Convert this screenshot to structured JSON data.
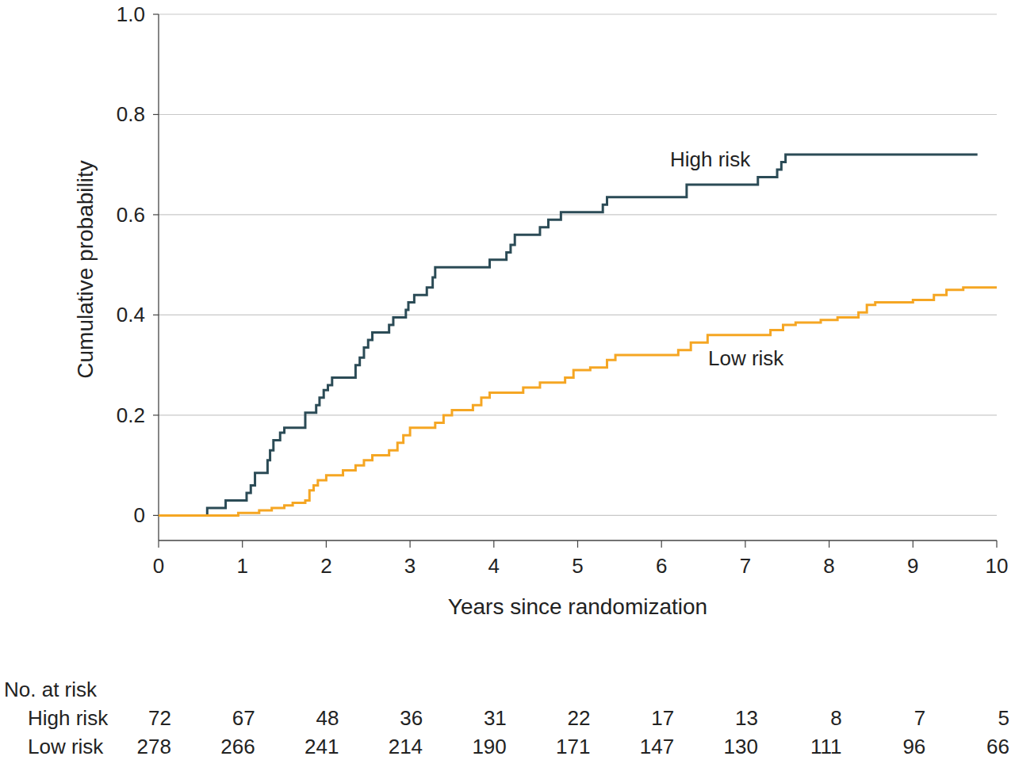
{
  "chart_data": {
    "type": "line",
    "x_label": "Years since randomization",
    "y_label": "Cumulative probability",
    "xlim": [
      0,
      10
    ],
    "xticks": [
      0,
      1,
      2,
      3,
      4,
      5,
      6,
      7,
      8,
      9,
      10
    ],
    "ylim": [
      -0.05,
      1.0
    ],
    "yticks": [
      0,
      0.2,
      0.4,
      0.6,
      0.8,
      {
        "value": 1,
        "label": "1.0"
      }
    ],
    "grid": true,
    "line_style": "step",
    "series": [
      {
        "name": "High risk",
        "color": "#2b4b56",
        "x": [
          0,
          0.58,
          0.8,
          1.05,
          1.1,
          1.15,
          1.3,
          1.33,
          1.37,
          1.45,
          1.5,
          1.75,
          1.88,
          1.92,
          1.97,
          2.02,
          2.07,
          2.35,
          2.4,
          2.45,
          2.5,
          2.55,
          2.75,
          2.8,
          2.95,
          2.98,
          3.05,
          3.2,
          3.27,
          3.3,
          3.95,
          4.15,
          4.2,
          4.25,
          4.55,
          4.65,
          4.8,
          5.3,
          5.35,
          6.3,
          7.15,
          7.38,
          7.43,
          7.48,
          9.77
        ],
        "values": [
          0,
          0.015,
          0.03,
          0.045,
          0.06,
          0.085,
          0.11,
          0.13,
          0.15,
          0.165,
          0.175,
          0.205,
          0.22,
          0.235,
          0.25,
          0.26,
          0.275,
          0.3,
          0.315,
          0.335,
          0.35,
          0.365,
          0.38,
          0.395,
          0.41,
          0.425,
          0.44,
          0.455,
          0.475,
          0.495,
          0.51,
          0.525,
          0.54,
          0.56,
          0.575,
          0.59,
          0.605,
          0.62,
          0.635,
          0.66,
          0.675,
          0.69,
          0.705,
          0.72,
          0.72
        ]
      },
      {
        "name": "Low risk",
        "color": "#f5a623",
        "x": [
          0,
          0.95,
          1.2,
          1.35,
          1.5,
          1.6,
          1.75,
          1.8,
          1.85,
          1.9,
          2.0,
          2.2,
          2.35,
          2.45,
          2.55,
          2.75,
          2.85,
          2.92,
          3.0,
          3.3,
          3.4,
          3.5,
          3.75,
          3.85,
          3.95,
          4.35,
          4.55,
          4.85,
          4.95,
          5.15,
          5.35,
          5.45,
          6.2,
          6.35,
          6.55,
          7.3,
          7.45,
          7.6,
          7.9,
          8.1,
          8.35,
          8.45,
          8.55,
          9.0,
          9.25,
          9.4,
          9.6,
          10.0
        ],
        "values": [
          0,
          0.005,
          0.01,
          0.015,
          0.02,
          0.025,
          0.03,
          0.05,
          0.06,
          0.07,
          0.08,
          0.09,
          0.1,
          0.11,
          0.12,
          0.13,
          0.145,
          0.16,
          0.175,
          0.185,
          0.2,
          0.21,
          0.22,
          0.235,
          0.245,
          0.255,
          0.265,
          0.275,
          0.29,
          0.295,
          0.31,
          0.32,
          0.33,
          0.345,
          0.36,
          0.37,
          0.38,
          0.385,
          0.39,
          0.395,
          0.405,
          0.42,
          0.425,
          0.43,
          0.44,
          0.45,
          0.455,
          0.455
        ]
      }
    ],
    "risk_table": {
      "title": "No. at risk",
      "rows": [
        {
          "name": "High risk",
          "values": [
            72,
            67,
            48,
            36,
            31,
            22,
            17,
            13,
            8,
            7,
            5
          ]
        },
        {
          "name": "Low risk",
          "values": [
            278,
            266,
            241,
            214,
            190,
            171,
            147,
            130,
            111,
            96,
            66
          ]
        }
      ]
    }
  }
}
